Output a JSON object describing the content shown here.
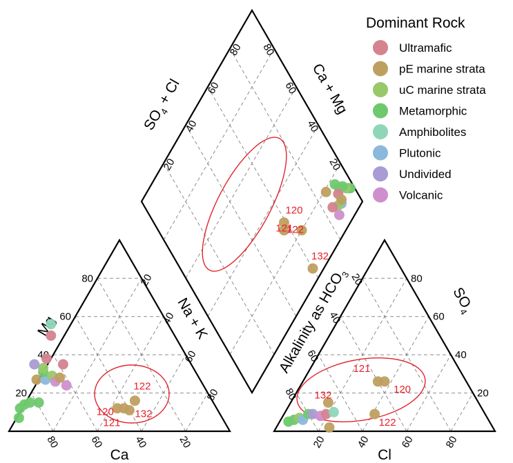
{
  "chart_data": {
    "type": "scatter",
    "diagram": "piper",
    "legend": {
      "title": "Dominant Rock",
      "placement": "top-right",
      "entries": [
        {
          "name": "Ultramafic",
          "color": "#d4838f"
        },
        {
          "name": "pE marine strata",
          "color": "#bf9f60"
        },
        {
          "name": "uC marine strata",
          "color": "#98c86a"
        },
        {
          "name": "Metamorphic",
          "color": "#6ec96e"
        },
        {
          "name": "Amphibolites",
          "color": "#8fd6b8"
        },
        {
          "name": "Plutonic",
          "color": "#8cb8dc"
        },
        {
          "name": "Undivided",
          "color": "#a99bd4"
        },
        {
          "name": "Volcanic",
          "color": "#cf8fcd"
        }
      ]
    },
    "cation_triangle": {
      "axes": {
        "bottom": "Ca",
        "left": "Mg",
        "right": "Na + K"
      },
      "ticks": {
        "bottom": [
          "80",
          "60",
          "40",
          "20"
        ],
        "left": [
          "20",
          "40",
          "60",
          "80"
        ],
        "right": [
          "20",
          "40",
          "60",
          "80"
        ]
      },
      "points": [
        {
          "Ca": 92,
          "Mg": 7,
          "group": "Metamorphic"
        },
        {
          "Ca": 89,
          "Mg": 12,
          "group": "Metamorphic"
        },
        {
          "Ca": 86,
          "Mg": 14,
          "group": "Metamorphic"
        },
        {
          "Ca": 83,
          "Mg": 15,
          "group": "Metamorphic"
        },
        {
          "Ca": 79,
          "Mg": 15,
          "group": "Metamorphic"
        },
        {
          "Ca": 74,
          "Mg": 27,
          "group": "pE marine strata"
        },
        {
          "Ca": 70,
          "Mg": 27,
          "group": "Plutonic"
        },
        {
          "Ca": 69,
          "Mg": 31,
          "group": "Metamorphic"
        },
        {
          "Ca": 68,
          "Mg": 33,
          "group": "uC marine strata"
        },
        {
          "Ca": 66,
          "Mg": 29,
          "group": "uC marine strata"
        },
        {
          "Ca": 66,
          "Mg": 26,
          "group": "Volcanic"
        },
        {
          "Ca": 63,
          "Mg": 28,
          "group": "pE marine strata"
        },
        {
          "Ca": 62,
          "Mg": 24,
          "group": "Volcanic"
        },
        {
          "Ca": 71,
          "Mg": 35,
          "group": "Undivided"
        },
        {
          "Ca": 64,
          "Mg": 38,
          "group": "Ultramafic"
        },
        {
          "Ca": 58,
          "Mg": 35,
          "group": "Ultramafic"
        },
        {
          "Ca": 56,
          "Mg": 50,
          "group": "Ultramafic"
        },
        {
          "Ca": 53,
          "Mg": 56,
          "group": "Amphibolites"
        },
        {
          "Ca": 45,
          "Mg": 12,
          "group": "pE marine strata",
          "label": "120"
        },
        {
          "Ca": 42,
          "Mg": 12,
          "group": "pE marine strata",
          "label": "121"
        },
        {
          "Ca": 40,
          "Mg": 11,
          "group": "pE marine strata",
          "label": "132"
        },
        {
          "Ca": 35,
          "Mg": 16,
          "group": "pE marine strata",
          "label": "122"
        }
      ]
    },
    "anion_triangle": {
      "axes": {
        "bottom": "Cl",
        "left": "Alkalinity as HCO",
        "left_subscript": "3",
        "right": "SO",
        "right_subscript": "4"
      },
      "ticks": {
        "bottom": [
          "20",
          "40",
          "60",
          "80"
        ],
        "left": [
          "80",
          "60",
          "40",
          "20"
        ],
        "right": [
          "20",
          "40",
          "60",
          "80"
        ]
      },
      "points": [
        {
          "Cl": 4,
          "SO4": 5,
          "group": "Metamorphic"
        },
        {
          "Cl": 6,
          "SO4": 6,
          "group": "Metamorphic"
        },
        {
          "Cl": 8,
          "SO4": 7,
          "group": "uC marine strata"
        },
        {
          "Cl": 10,
          "SO4": 6,
          "group": "Plutonic"
        },
        {
          "Cl": 11,
          "SO4": 9,
          "group": "Metamorphic"
        },
        {
          "Cl": 13,
          "SO4": 9,
          "group": "Undivided"
        },
        {
          "Cl": 17,
          "SO4": 8,
          "group": "Volcanic"
        },
        {
          "Cl": 19,
          "SO4": 9,
          "group": "Ultramafic"
        },
        {
          "Cl": 22,
          "SO4": 10,
          "group": "Amphibolites"
        },
        {
          "Cl": 24,
          "SO4": 2,
          "group": "pE marine strata"
        },
        {
          "Cl": 17,
          "SO4": 15,
          "group": "pE marine strata",
          "label": "132"
        },
        {
          "Cl": 41,
          "SO4": 9,
          "group": "pE marine strata",
          "label": "122"
        },
        {
          "Cl": 34,
          "SO4": 26,
          "group": "pE marine strata",
          "label": "121"
        },
        {
          "Cl": 37,
          "SO4": 26,
          "group": "pE marine strata",
          "label": "120"
        }
      ]
    },
    "diamond": {
      "axes": {
        "upper_left": "SO",
        "upper_left_subscript": "4",
        "upper_left_suffix": " + Cl",
        "upper_right": "Ca + Mg"
      },
      "ticks": {
        "upper_left": [
          "20",
          "40",
          "60",
          "80"
        ],
        "upper_right": [
          "20",
          "40",
          "60",
          "80"
        ]
      },
      "points": [
        {
          "CaMg": 98,
          "SO4Cl": 9,
          "group": "Metamorphic"
        },
        {
          "CaMg": 97,
          "SO4Cl": 10,
          "group": "Metamorphic"
        },
        {
          "CaMg": 96,
          "SO4Cl": 11,
          "group": "uC marine strata"
        },
        {
          "CaMg": 95,
          "SO4Cl": 13,
          "group": "Metamorphic"
        },
        {
          "CaMg": 93,
          "SO4Cl": 14,
          "group": "Metamorphic"
        },
        {
          "CaMg": 92,
          "SO4Cl": 17,
          "group": "Metamorphic"
        },
        {
          "CaMg": 90,
          "SO4Cl": 9,
          "group": "Plutonic"
        },
        {
          "CaMg": 91,
          "SO4Cl": 13,
          "group": "Ultramafic"
        },
        {
          "CaMg": 88,
          "SO4Cl": 10,
          "group": "uC marine strata"
        },
        {
          "CaMg": 86,
          "SO4Cl": 7,
          "group": "Volcanic"
        },
        {
          "CaMg": 85,
          "SO4Cl": 12,
          "group": "Ultramafic"
        },
        {
          "CaMg": 91,
          "SO4Cl": 10,
          "group": "pE marine strata"
        },
        {
          "CaMg": 86,
          "SO4Cl": 19,
          "group": "pE marine strata"
        },
        {
          "CaMg": 59,
          "SO4Cl": 30,
          "group": "pE marine strata",
          "label": "120"
        },
        {
          "CaMg": 57,
          "SO4Cl": 28,
          "group": "pE marine strata",
          "label": "121"
        },
        {
          "CaMg": 65,
          "SO4Cl": 20,
          "group": "pE marine strata",
          "label": "122"
        },
        {
          "CaMg": 60,
          "SO4Cl": 5,
          "group": "pE marine strata",
          "label": "132"
        }
      ]
    }
  }
}
